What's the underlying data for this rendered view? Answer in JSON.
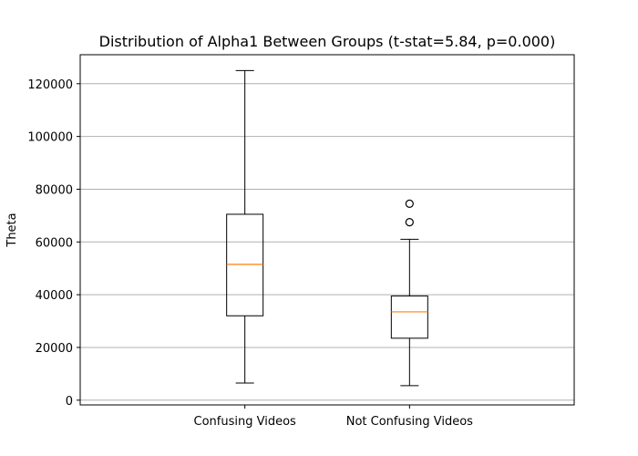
{
  "chart_data": {
    "type": "box",
    "title": "Distribution of Alpha1 Between Groups (t-stat=5.84, p=0.000)",
    "xlabel": "",
    "ylabel": "Theta",
    "ylim": [
      0,
      130000
    ],
    "yticks": [
      0,
      20000,
      40000,
      60000,
      80000,
      100000,
      120000
    ],
    "grid": "y",
    "categories": [
      "Confusing Videos",
      "Not Confusing Videos"
    ],
    "boxes": [
      {
        "category": "Confusing Videos",
        "whisker_low": 6500,
        "q1": 32000,
        "median": 51500,
        "q3": 70500,
        "whisker_high": 125000,
        "outliers": []
      },
      {
        "category": "Not Confusing Videos",
        "whisker_low": 5500,
        "q1": 23500,
        "median": 33500,
        "q3": 39500,
        "whisker_high": 61000,
        "outliers": [
          67500,
          74500
        ]
      }
    ],
    "colors": {
      "box": "#000000",
      "median": "#ff7f0e",
      "grid": "#b0b0b0"
    }
  }
}
